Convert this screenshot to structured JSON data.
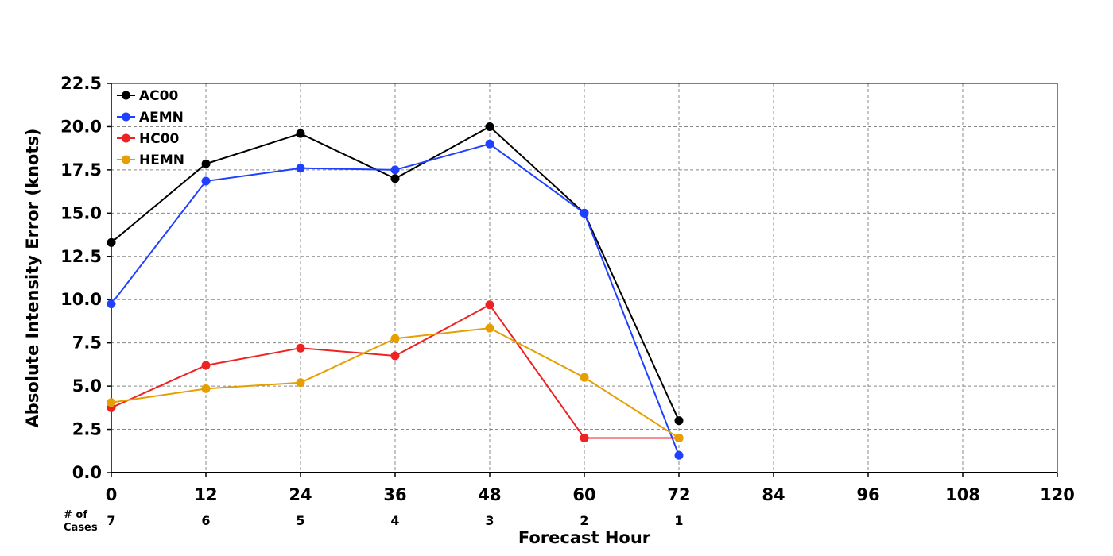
{
  "chart_data": {
    "type": "line",
    "xlabel": "Forecast Hour",
    "ylabel": "Absolute Intensity Error (knots)",
    "xlim": [
      0,
      120
    ],
    "ylim": [
      0,
      22.5
    ],
    "xticks": [
      0,
      12,
      24,
      36,
      48,
      60,
      72,
      84,
      96,
      108,
      120
    ],
    "yticks": [
      0.0,
      2.5,
      5.0,
      7.5,
      10.0,
      12.5,
      15.0,
      17.5,
      20.0,
      22.5
    ],
    "ytick_labels": [
      "0.0",
      "2.5",
      "5.0",
      "7.5",
      "10.0",
      "12.5",
      "15.0",
      "17.5",
      "20.0",
      "22.5"
    ],
    "grid": true,
    "legend_position": "top-left",
    "series": [
      {
        "name": "AC00",
        "color": "#000000",
        "x": [
          0,
          12,
          24,
          36,
          48,
          60,
          72
        ],
        "values": [
          13.3,
          17.85,
          19.6,
          17.0,
          20.0,
          15.0,
          3.0
        ]
      },
      {
        "name": "AEMN",
        "color": "#2040ff",
        "x": [
          0,
          12,
          24,
          36,
          48,
          60,
          72
        ],
        "values": [
          9.75,
          16.85,
          17.6,
          17.5,
          19.0,
          15.0,
          1.0
        ]
      },
      {
        "name": "HC00",
        "color": "#ee2222",
        "x": [
          0,
          12,
          24,
          36,
          48,
          60,
          72
        ],
        "values": [
          3.75,
          6.2,
          7.2,
          6.75,
          9.7,
          2.0,
          2.0
        ]
      },
      {
        "name": "HEMN",
        "color": "#e69f00",
        "x": [
          0,
          12,
          24,
          36,
          48,
          60,
          72
        ],
        "values": [
          4.05,
          4.85,
          5.2,
          7.75,
          8.35,
          5.5,
          2.0
        ]
      }
    ],
    "cases_label": "# of Cases",
    "cases_label_lines": [
      "# of",
      "Cases"
    ],
    "cases": [
      {
        "x": 0,
        "count": "7"
      },
      {
        "x": 12,
        "count": "6"
      },
      {
        "x": 24,
        "count": "5"
      },
      {
        "x": 36,
        "count": "4"
      },
      {
        "x": 48,
        "count": "3"
      },
      {
        "x": 60,
        "count": "2"
      },
      {
        "x": 72,
        "count": "1"
      }
    ]
  }
}
